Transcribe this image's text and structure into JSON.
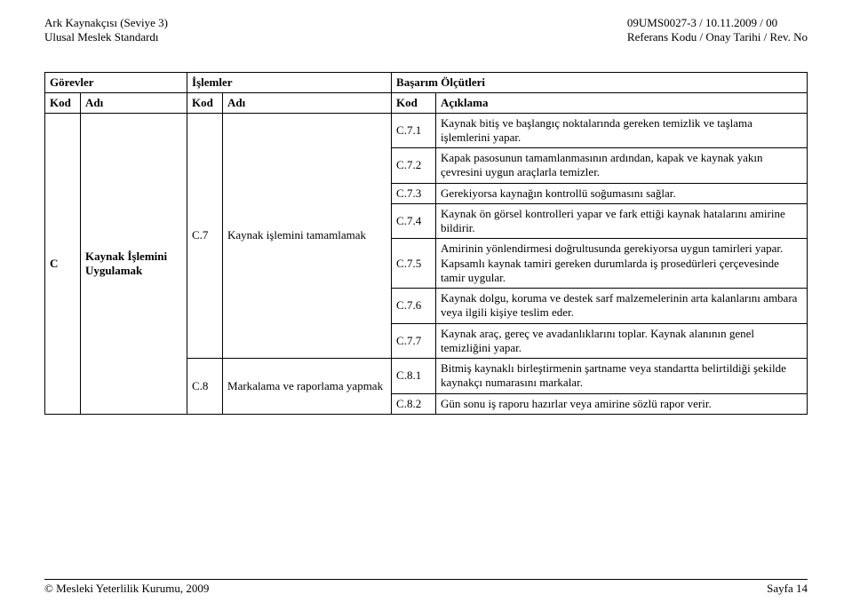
{
  "header": {
    "left_line1": "Ark Kaynakçısı (Seviye 3)",
    "left_line2": "Ulusal Meslek Standardı",
    "right_line1": "09UMS0027-3 / 10.11.2009 / 00",
    "right_line2": "Referans Kodu / Onay Tarihi / Rev. No"
  },
  "table": {
    "header_row1": {
      "gorevler": "Görevler",
      "islemler": "İşlemler",
      "basarim": "Başarım Ölçütleri"
    },
    "header_row2": {
      "kod": "Kod",
      "adi": "Adı",
      "aciklama": "Açıklama"
    },
    "level1": {
      "kod": "C",
      "adi": "Kaynak İşlemini Uygulamak"
    },
    "level2a": {
      "kod": "C.7",
      "adi": "Kaynak işlemini tamamlamak"
    },
    "level2b": {
      "kod": "C.8",
      "adi": "Markalama ve raporlama yapmak"
    },
    "rows": [
      {
        "kod": "C.7.1",
        "desc": "Kaynak bitiş ve başlangıç noktalarında gereken temizlik ve taşlama işlemlerini yapar."
      },
      {
        "kod": "C.7.2",
        "desc": "Kapak pasosunun tamamlanmasının ardından, kapak ve kaynak yakın çevresini uygun araçlarla temizler."
      },
      {
        "kod": "C.7.3",
        "desc": "Gerekiyorsa kaynağın kontrollü soğumasını sağlar."
      },
      {
        "kod": "C.7.4",
        "desc": "Kaynak ön görsel kontrolleri yapar ve fark ettiği kaynak hatalarını amirine bildirir."
      },
      {
        "kod": "C.7.5",
        "desc": "Amirinin yönlendirmesi doğrultusunda gerekiyorsa uygun tamirleri yapar. Kapsamlı kaynak tamiri gereken durumlarda iş prosedürleri çerçevesinde tamir uygular."
      },
      {
        "kod": "C.7.6",
        "desc": "Kaynak dolgu, koruma ve destek sarf malzemelerinin arta kalanlarını ambara veya ilgili kişiye teslim eder."
      },
      {
        "kod": "C.7.7",
        "desc": "Kaynak araç, gereç ve avadanlıklarını toplar. Kaynak alanının genel temizliğini yapar."
      },
      {
        "kod": "C.8.1",
        "desc": "Bitmiş kaynaklı birleştirmenin şartname veya standartta belirtildiği şekilde kaynakçı numarasını markalar."
      },
      {
        "kod": "C.8.2",
        "desc": "Gün sonu iş raporu hazırlar veya amirine sözlü rapor verir."
      }
    ]
  },
  "footer": {
    "left": "© Mesleki Yeterlilik Kurumu, 2009",
    "right": "Sayfa 14"
  }
}
